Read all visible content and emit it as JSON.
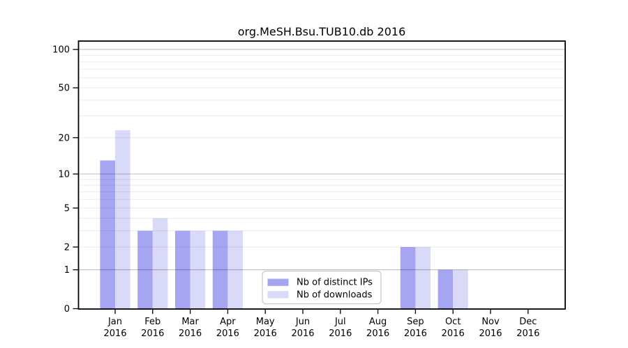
{
  "chart_data": {
    "type": "bar",
    "title": "org.MeSH.Bsu.TUB10.db 2016",
    "x_categories_months": [
      "Jan",
      "Feb",
      "Mar",
      "Apr",
      "May",
      "Jun",
      "Jul",
      "Aug",
      "Sep",
      "Oct",
      "Nov",
      "Dec"
    ],
    "x_year": "2016",
    "series": [
      {
        "name": "Nb of distinct IPs",
        "color": "#a5a5f2",
        "values": [
          13,
          3,
          3,
          3,
          0,
          0,
          0,
          0,
          2,
          1,
          0,
          0
        ]
      },
      {
        "name": "Nb of downloads",
        "color": "#d9d9f8",
        "values": [
          23,
          4,
          3,
          3,
          0,
          0,
          0,
          0,
          2,
          1,
          0,
          0
        ]
      }
    ],
    "y_axis": {
      "scale": "log10(1+v)",
      "tick_values": [
        0,
        1,
        2,
        5,
        10,
        20,
        50,
        100
      ],
      "minor_gridline_values": [
        2,
        3,
        4,
        5,
        6,
        7,
        8,
        9,
        20,
        30,
        40,
        50,
        60,
        70,
        80,
        90
      ],
      "major_gridline_values": [
        1,
        10,
        100
      ],
      "range": [
        0,
        110
      ]
    },
    "legend": {
      "entries": [
        "Nb of distinct IPs",
        "Nb of downloads"
      ],
      "position": "bottom-center"
    },
    "grid": "horizontal"
  }
}
